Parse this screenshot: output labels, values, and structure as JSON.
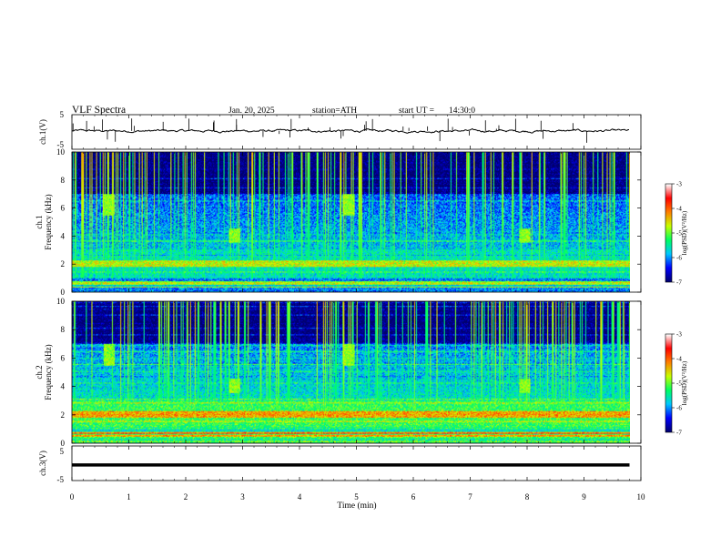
{
  "header": {
    "title": "VLF  Spectra",
    "date": "Jan. 20, 2025",
    "station": "station=ATH",
    "start_ut_label": "start  UT  =",
    "start_ut_value": "14:30:0"
  },
  "chart_data": [
    {
      "type": "line",
      "ylabel": "ch.1(V)",
      "ylim": [
        -5,
        5
      ],
      "yticks": [
        "5",
        "-5"
      ],
      "xlim": [
        0,
        10
      ],
      "baseline": 0.3,
      "noise": "small fluctuations with occasional sharp vertical spikes (sferics)",
      "color": "#000000"
    },
    {
      "type": "heatmap",
      "ylabel": "Frequency  (kHz)",
      "channel_label": "ch.1",
      "ylim": [
        0,
        10
      ],
      "yticks": [
        "0",
        "2",
        "4",
        "6",
        "8",
        "10"
      ],
      "xlim": [
        0,
        10
      ],
      "data_end_min": 9.8,
      "colorbar": {
        "label": "log(PSD)(V²/Hz)",
        "range": [
          -7,
          -3
        ],
        "ticks": [
          "-3",
          "-4",
          "-5",
          "-6",
          "-7"
        ],
        "colormap": [
          "#000070",
          "#0000ff",
          "#00c8ff",
          "#00ff60",
          "#c8ff00",
          "#ff8000",
          "#ff0000",
          "#ffffff"
        ]
      },
      "dominant_levels_log_psd": {
        "above_7kHz": -7.0,
        "3_to_7kHz": -6.2,
        "1_to_3kHz": -5.6
      },
      "features": [
        {
          "time_min": 0.65,
          "freq_khz": [
            5.5,
            7
          ],
          "type": "burst"
        },
        {
          "time_min": 2.85,
          "freq_khz": [
            3.5,
            4.5
          ],
          "type": "burst"
        },
        {
          "time_min": 4.85,
          "freq_khz": [
            5.5,
            7
          ],
          "type": "burst"
        },
        {
          "time_min": 7.95,
          "freq_khz": [
            3.5,
            4.5
          ],
          "type": "burst"
        }
      ]
    },
    {
      "type": "heatmap",
      "ylabel": "Frequency  (kHz)",
      "channel_label": "ch.2",
      "ylim": [
        0,
        10
      ],
      "yticks": [
        "0",
        "2",
        "4",
        "6",
        "8",
        "10"
      ],
      "xlim": [
        0,
        10
      ],
      "data_end_min": 9.8,
      "colorbar": {
        "label": "log(PSD)(V²/Hz)",
        "range": [
          -7,
          -3
        ],
        "ticks": [
          "-3",
          "-4",
          "-5",
          "-6",
          "-7"
        ],
        "colormap": [
          "#000070",
          "#0000ff",
          "#00c8ff",
          "#00ff60",
          "#c8ff00",
          "#ff8000",
          "#ff0000",
          "#ffffff"
        ]
      },
      "dominant_levels_log_psd": {
        "above_7kHz": -7.0,
        "3_to_7kHz": -6.0,
        "1_to_3kHz": -5.2
      },
      "features": [
        {
          "time_min": 0.65,
          "freq_khz": [
            5.5,
            7
          ],
          "type": "burst"
        },
        {
          "time_min": 2.85,
          "freq_khz": [
            3.5,
            4.5
          ],
          "type": "burst"
        },
        {
          "time_min": 4.85,
          "freq_khz": [
            5.5,
            7
          ],
          "type": "burst"
        },
        {
          "time_min": 7.95,
          "freq_khz": [
            3.5,
            4.5
          ],
          "type": "burst"
        }
      ]
    },
    {
      "type": "line",
      "ylabel": "ch.3(V)",
      "ylim": [
        -5,
        5
      ],
      "yticks": [
        "5",
        "-5"
      ],
      "xlim": [
        0,
        10
      ],
      "baseline": -0.5,
      "noise": "flat thick trace",
      "color": "#000000"
    }
  ],
  "xaxis": {
    "label": "Time  (min)",
    "ticks": [
      "0",
      "1",
      "2",
      "3",
      "4",
      "5",
      "6",
      "7",
      "8",
      "9",
      "10"
    ]
  }
}
